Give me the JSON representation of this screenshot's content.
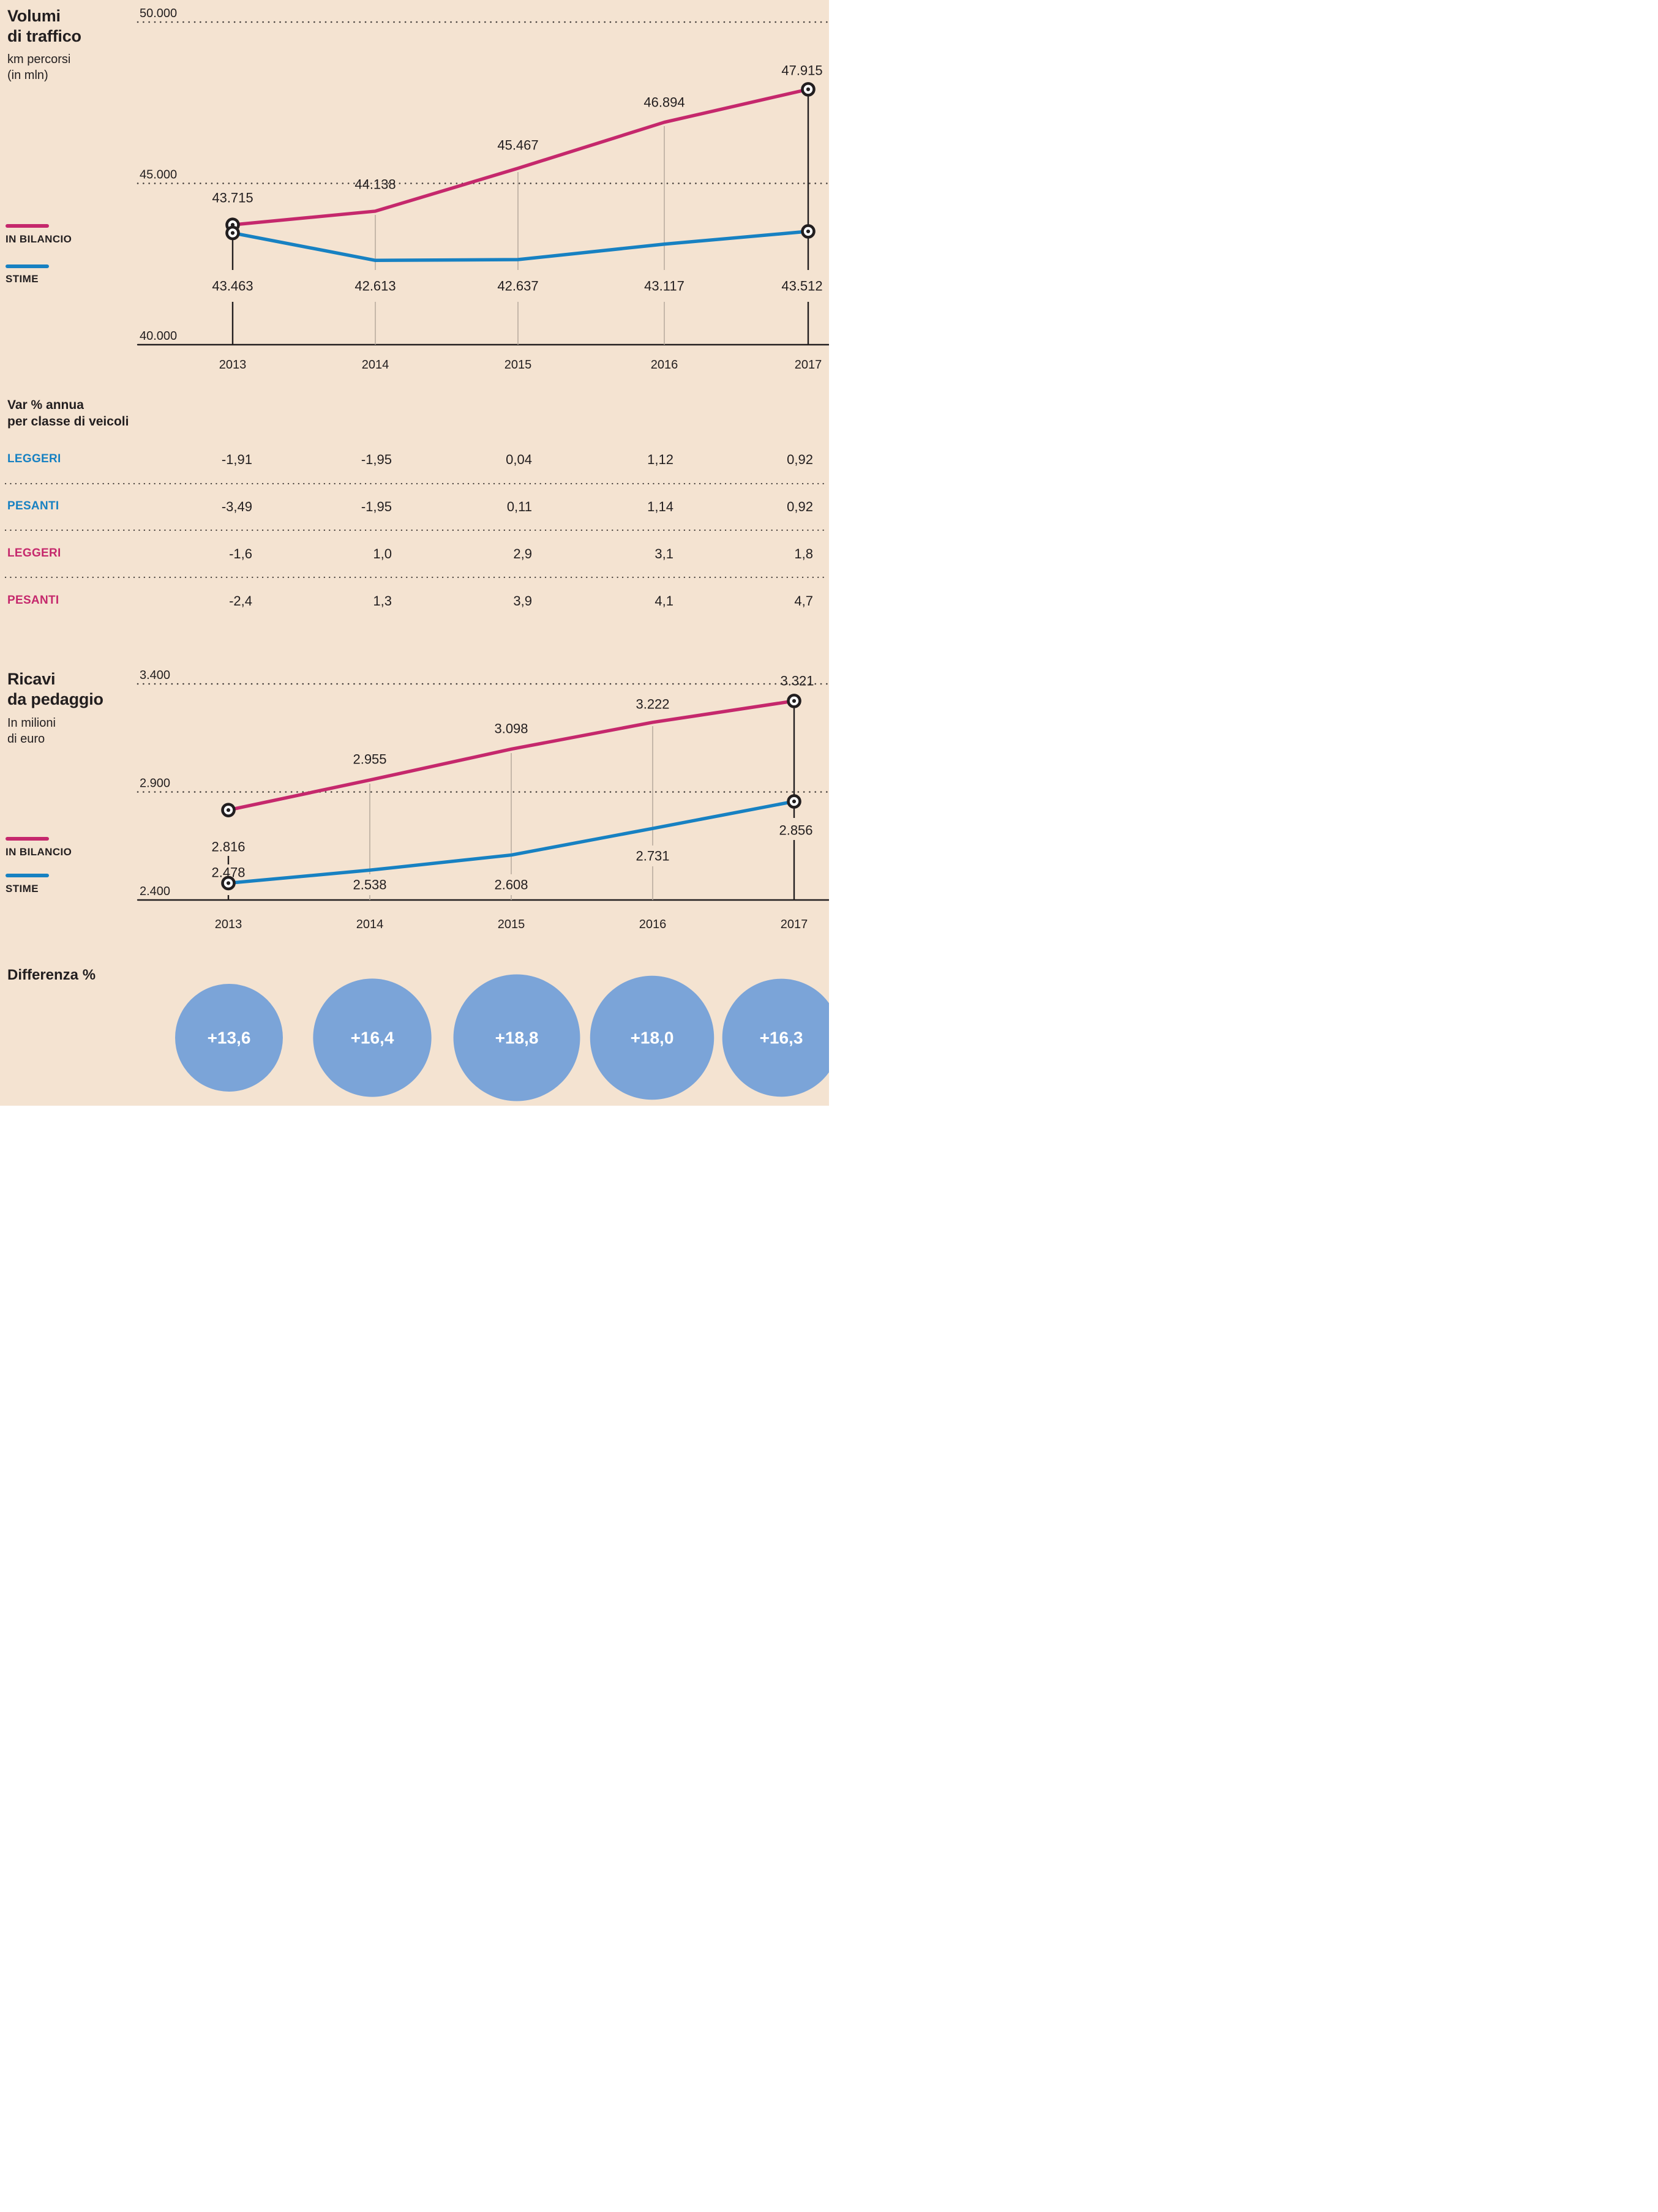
{
  "page": {
    "background": "#f4e3d1"
  },
  "colors": {
    "pink": "#c5286c",
    "blue": "#1781c2",
    "bubble_blue": "#7ba4d8",
    "dark": "#221e1f",
    "gray_line": "#b9ac9f",
    "dot": "#46403c",
    "white": "#ffffff"
  },
  "chart_data": [
    {
      "id": "traffic",
      "type": "line",
      "title": "Volumi di traffico",
      "title_lines": [
        "Volumi",
        "di traffico"
      ],
      "subtitle": "km percorsi (in mln)",
      "subtitle_lines": [
        "km percorsi",
        "(in mln)"
      ],
      "x": [
        "2013",
        "2014",
        "2015",
        "2016",
        "2017"
      ],
      "ylim": [
        40000,
        50000
      ],
      "grid": "dotted horizontal",
      "legend_position": "left",
      "y_ticks": [
        {
          "value": 50000,
          "label": "50.000"
        },
        {
          "value": 45000,
          "label": "45.000"
        },
        {
          "value": 40000,
          "label": "40.000"
        }
      ],
      "series": [
        {
          "name": "IN BILANCIO",
          "color_key": "pink",
          "values": [
            43715,
            44138,
            45467,
            46894,
            47915
          ],
          "labels": [
            "43.715",
            "44.138",
            "45.467",
            "46.894",
            "47.915"
          ]
        },
        {
          "name": "STIME",
          "color_key": "blue",
          "values": [
            43463,
            42613,
            42637,
            43117,
            43512
          ],
          "labels": [
            "43.463",
            "42.613",
            "42.637",
            "43.117",
            "43.512"
          ]
        }
      ]
    },
    {
      "id": "ricavi",
      "type": "line",
      "title": "Ricavi da pedaggio",
      "title_lines": [
        "Ricavi",
        "da pedaggio"
      ],
      "subtitle": "In milioni di euro",
      "subtitle_lines": [
        "In milioni",
        "di euro"
      ],
      "x": [
        "2013",
        "2014",
        "2015",
        "2016",
        "2017"
      ],
      "ylim": [
        2400,
        3400
      ],
      "grid": "dotted horizontal",
      "legend_position": "left",
      "y_ticks": [
        {
          "value": 3400,
          "label": "3.400"
        },
        {
          "value": 2900,
          "label": "2.900"
        },
        {
          "value": 2400,
          "label": "2.400"
        }
      ],
      "series": [
        {
          "name": "IN BILANCIO",
          "color_key": "pink",
          "values": [
            2816,
            2955,
            3098,
            3222,
            3321
          ],
          "labels": [
            "2.816",
            "2.955",
            "3.098",
            "3.222",
            "3.321"
          ]
        },
        {
          "name": "STIME",
          "color_key": "blue",
          "values": [
            2478,
            2538,
            2608,
            2731,
            2856
          ],
          "labels": [
            "2.478",
            "2.538",
            "2.608",
            "2.731",
            "2.856"
          ]
        }
      ]
    },
    {
      "id": "difference",
      "type": "bubble",
      "title": "Differenza %",
      "x": [
        "2013",
        "2014",
        "2015",
        "2016",
        "2017"
      ],
      "values": [
        13.6,
        16.4,
        18.8,
        18.0,
        16.3
      ],
      "labels": [
        "+13,6",
        "+16,4",
        "+18,8",
        "+18,0",
        "+16,3"
      ]
    }
  ],
  "table": {
    "title": "Var % annua per classe di veicoli",
    "title_lines": [
      "Var % annua",
      "per classe di veicoli"
    ],
    "columns": [
      "2013",
      "2014",
      "2015",
      "2016",
      "2017"
    ],
    "rows": [
      {
        "label": "LEGGERI",
        "color_key": "blue",
        "values": [
          "-1,91",
          "-1,95",
          "0,04",
          "1,12",
          "0,92"
        ]
      },
      {
        "label": "PESANTI",
        "color_key": "blue",
        "values": [
          "-3,49",
          "-1,95",
          "0,11",
          "1,14",
          "0,92"
        ]
      },
      {
        "label": "LEGGERI",
        "color_key": "pink",
        "values": [
          "-1,6",
          "1,0",
          "2,9",
          "3,1",
          "1,8"
        ]
      },
      {
        "label": "PESANTI",
        "color_key": "pink",
        "values": [
          "-2,4",
          "1,3",
          "3,9",
          "4,1",
          "4,7"
        ]
      }
    ]
  },
  "legend": {
    "in_bilancio": "IN BILANCIO",
    "stime": "STIME"
  },
  "difference_label": "Differenza %"
}
